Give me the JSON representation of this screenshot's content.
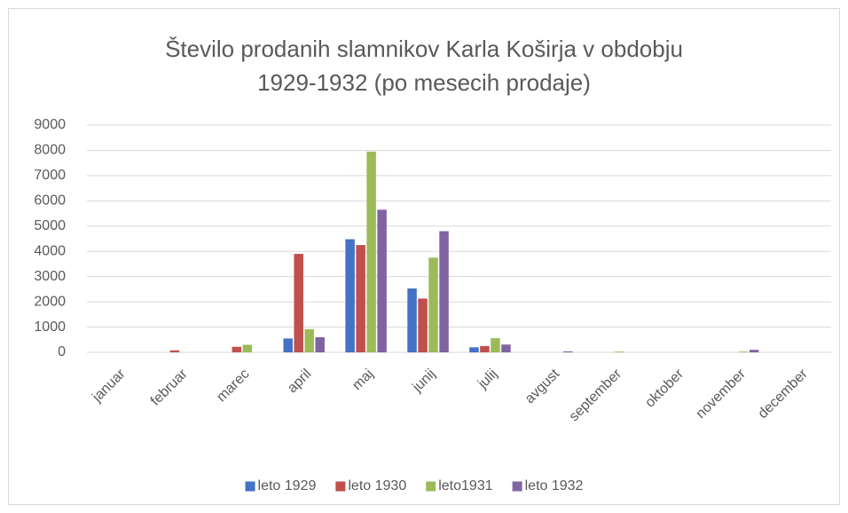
{
  "chart_data": {
    "type": "bar",
    "title": "Število prodanih slamnikov Karla Koširja v obdobju 1929-1932 (po mesecih prodaje)",
    "categories": [
      "januar",
      "februar",
      "marec",
      "april",
      "maj",
      "junij",
      "julij",
      "avgust",
      "september",
      "oktober",
      "november",
      "december"
    ],
    "series": [
      {
        "name": "leto 1929",
        "color": "#4472c4",
        "values": [
          0,
          0,
          0,
          550,
          4480,
          2530,
          200,
          0,
          0,
          0,
          0,
          0
        ]
      },
      {
        "name": "leto 1930",
        "color": "#c0504d",
        "values": [
          0,
          80,
          220,
          3900,
          4250,
          2130,
          250,
          0,
          0,
          0,
          0,
          0
        ]
      },
      {
        "name": "leto1931",
        "color": "#9bbb59",
        "values": [
          0,
          0,
          300,
          920,
          7950,
          3750,
          560,
          0,
          30,
          0,
          30,
          0
        ]
      },
      {
        "name": "leto 1932",
        "color": "#8064a2",
        "values": [
          0,
          0,
          0,
          600,
          5650,
          4800,
          310,
          40,
          0,
          0,
          100,
          0
        ]
      }
    ],
    "ylim": [
      0,
      9000
    ],
    "yticks": [
      0,
      1000,
      2000,
      3000,
      4000,
      5000,
      6000,
      7000,
      8000,
      9000
    ],
    "grid": true,
    "legend": "bottom"
  }
}
